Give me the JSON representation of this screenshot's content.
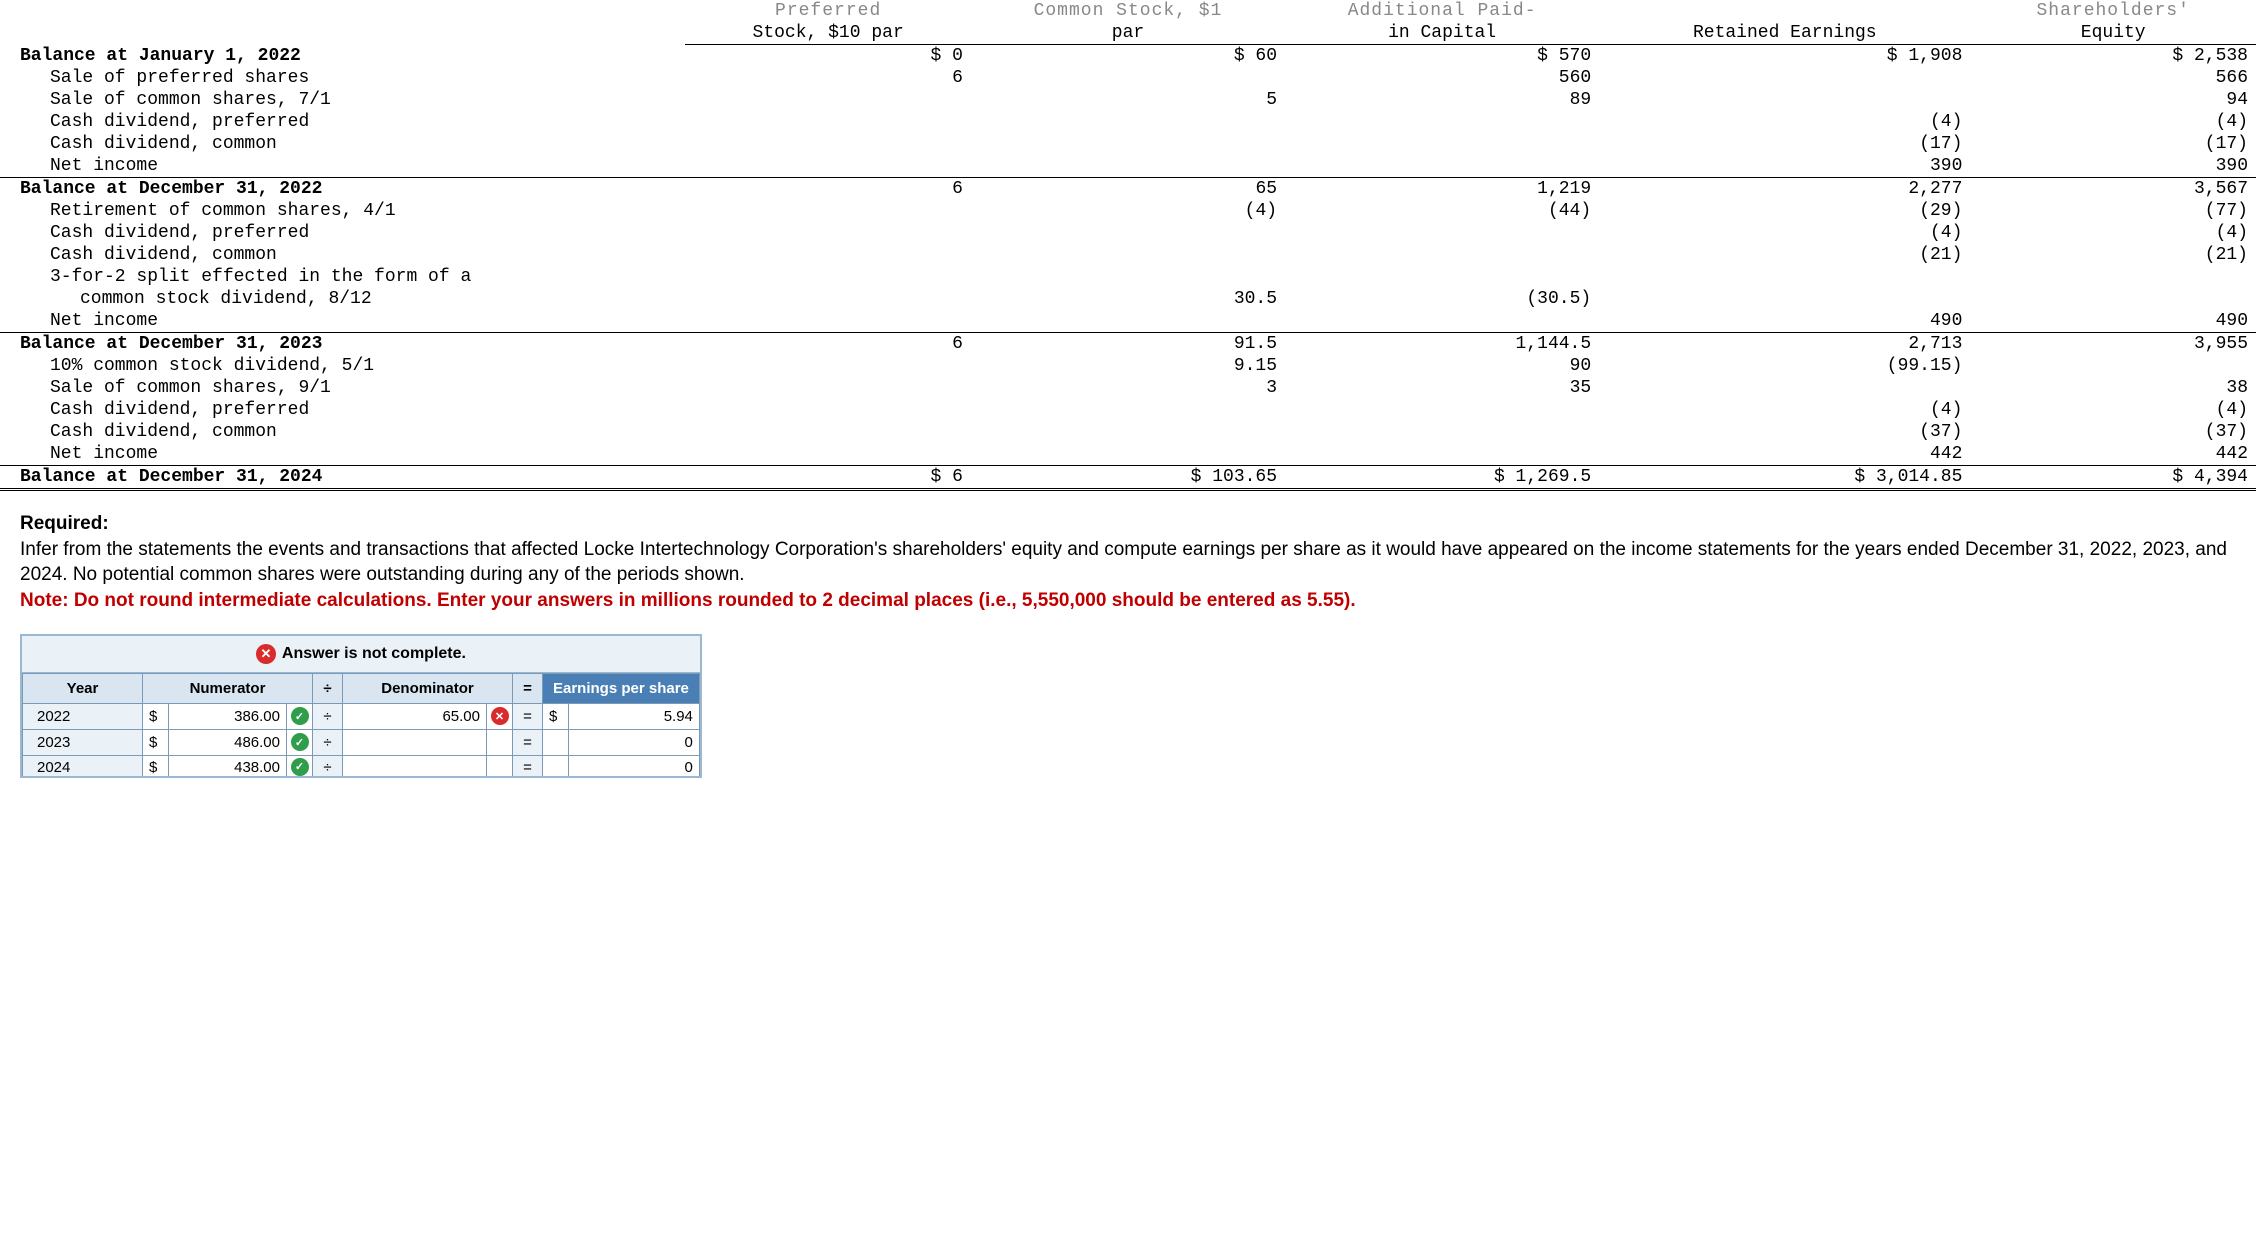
{
  "equity": {
    "headers": {
      "cut1": "Preferred",
      "cut2": "Common Stock, $1",
      "cut3": "Additional Paid-",
      "cut4": "Shareholders'",
      "h1": "Stock, $10 par",
      "h2": "par",
      "h3": "in Capital",
      "h4": "Retained Earnings",
      "h5": "Equity"
    },
    "rows": [
      {
        "desc": "Balance at January 1, 2022",
        "bold": true,
        "indent": 0,
        "c1": "$ 0",
        "c2": "$ 60",
        "c3": "$ 570",
        "c4": "$ 1,908",
        "c5": "$ 2,538",
        "cls": ""
      },
      {
        "desc": "Sale of preferred shares",
        "bold": false,
        "indent": 1,
        "c1": "6",
        "c2": "",
        "c3": "560",
        "c4": "",
        "c5": "566",
        "cls": ""
      },
      {
        "desc": "Sale of common shares, 7/1",
        "bold": false,
        "indent": 1,
        "c1": "",
        "c2": "5",
        "c3": "89",
        "c4": "",
        "c5": "94",
        "cls": ""
      },
      {
        "desc": "Cash dividend, preferred",
        "bold": false,
        "indent": 1,
        "c1": "",
        "c2": "",
        "c3": "",
        "c4": "(4)",
        "c5": "(4)",
        "cls": ""
      },
      {
        "desc": "Cash dividend, common",
        "bold": false,
        "indent": 1,
        "c1": "",
        "c2": "",
        "c3": "",
        "c4": "(17)",
        "c5": "(17)",
        "cls": ""
      },
      {
        "desc": "Net income",
        "bold": false,
        "indent": 1,
        "c1": "",
        "c2": "",
        "c3": "",
        "c4": "390",
        "c5": "390",
        "cls": ""
      },
      {
        "desc": "Balance at December 31, 2022",
        "bold": true,
        "indent": 0,
        "c1": "6",
        "c2": "65",
        "c3": "1,219",
        "c4": "2,277",
        "c5": "3,567",
        "cls": "balance-row"
      },
      {
        "desc": "Retirement of common shares, 4/1",
        "bold": false,
        "indent": 1,
        "c1": "",
        "c2": "(4)",
        "c3": "(44)",
        "c4": "(29)",
        "c5": "(77)",
        "cls": ""
      },
      {
        "desc": "Cash dividend, preferred",
        "bold": false,
        "indent": 1,
        "c1": "",
        "c2": "",
        "c3": "",
        "c4": "(4)",
        "c5": "(4)",
        "cls": ""
      },
      {
        "desc": "Cash dividend, common",
        "bold": false,
        "indent": 1,
        "c1": "",
        "c2": "",
        "c3": "",
        "c4": "(21)",
        "c5": "(21)",
        "cls": ""
      },
      {
        "desc": "3-for-2 split effected in the form of a",
        "bold": false,
        "indent": 1,
        "c1": "",
        "c2": "",
        "c3": "",
        "c4": "",
        "c5": "",
        "cls": ""
      },
      {
        "desc": "common stock dividend, 8/12",
        "bold": false,
        "indent": 2,
        "c1": "",
        "c2": "30.5",
        "c3": "(30.5)",
        "c4": "",
        "c5": "",
        "cls": ""
      },
      {
        "desc": "Net income",
        "bold": false,
        "indent": 1,
        "c1": "",
        "c2": "",
        "c3": "",
        "c4": "490",
        "c5": "490",
        "cls": ""
      },
      {
        "desc": "Balance at December 31, 2023",
        "bold": true,
        "indent": 0,
        "c1": "6",
        "c2": "91.5",
        "c3": "1,144.5",
        "c4": "2,713",
        "c5": "3,955",
        "cls": "balance-row"
      },
      {
        "desc": "10% common stock dividend, 5/1",
        "bold": false,
        "indent": 1,
        "c1": "",
        "c2": "9.15",
        "c3": "90",
        "c4": "(99.15)",
        "c5": "",
        "cls": ""
      },
      {
        "desc": "Sale of common shares, 9/1",
        "bold": false,
        "indent": 1,
        "c1": "",
        "c2": "3",
        "c3": "35",
        "c4": "",
        "c5": "38",
        "cls": ""
      },
      {
        "desc": "Cash dividend, preferred",
        "bold": false,
        "indent": 1,
        "c1": "",
        "c2": "",
        "c3": "",
        "c4": "(4)",
        "c5": "(4)",
        "cls": ""
      },
      {
        "desc": "Cash dividend, common",
        "bold": false,
        "indent": 1,
        "c1": "",
        "c2": "",
        "c3": "",
        "c4": "(37)",
        "c5": "(37)",
        "cls": ""
      },
      {
        "desc": "Net income",
        "bold": false,
        "indent": 1,
        "c1": "",
        "c2": "",
        "c3": "",
        "c4": "442",
        "c5": "442",
        "cls": ""
      },
      {
        "desc": "Balance at December 31, 2024",
        "bold": true,
        "indent": 0,
        "c1": "$ 6",
        "c2": "$ 103.65",
        "c3": "$ 1,269.5",
        "c4": "$ 3,014.85",
        "c5": "$ 4,394",
        "cls": "final-row"
      }
    ]
  },
  "required": {
    "label": "Required:",
    "text": "Infer from the statements the events and transactions that affected Locke Intertechnology Corporation's shareholders' equity and compute earnings per share as it would have appeared on the income statements for the years ended December 31, 2022, 2023, and 2024. No potential common shares were outstanding during any of the periods shown.",
    "note": "Note: Do not round intermediate calculations. Enter your answers in millions rounded to 2 decimal places (i.e., 5,550,000 should be entered as 5.55)."
  },
  "answer": {
    "incomplete_msg": "Answer is not complete.",
    "headers": {
      "year": "Year",
      "num": "Numerator",
      "div": "÷",
      "denom": "Denominator",
      "eq": "=",
      "eps": "Earnings per share"
    },
    "rows": [
      {
        "year": "2022",
        "num_d": "$",
        "num": "386.00",
        "num_icon": "check",
        "div": "÷",
        "denom": "65.00",
        "denom_icon": "x",
        "eq": "=",
        "eps_d": "$",
        "eps": "5.94"
      },
      {
        "year": "2023",
        "num_d": "$",
        "num": "486.00",
        "num_icon": "check",
        "div": "÷",
        "denom": "",
        "denom_icon": "",
        "eq": "=",
        "eps_d": "",
        "eps": "0"
      },
      {
        "year": "2024",
        "num_d": "$",
        "num": "438.00",
        "num_icon": "check",
        "div": "÷",
        "denom": "",
        "denom_icon": "",
        "eq": "=",
        "eps_d": "",
        "eps": "0"
      }
    ]
  },
  "styling": {
    "header_bg": "#d9e6f2",
    "header_blue_bg": "#4a7fb5",
    "border_color": "#7a9ab5",
    "note_color": "#c00000",
    "check_color": "#2e9e4a",
    "x_color": "#d92b2b"
  }
}
